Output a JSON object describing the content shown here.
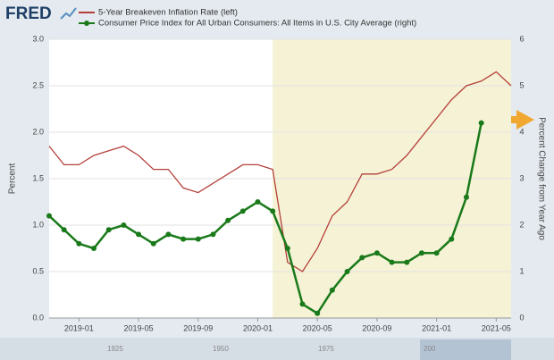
{
  "logo": "FRED",
  "chart_data": {
    "type": "line",
    "legend": [
      "5-Year Breakeven Inflation Rate (left)",
      "Consumer Price Index for All Urban Consumers: All Items in U.S. City Average (right)"
    ],
    "ylabel": "Percent",
    "y2label": "Percent Change from Year Ago",
    "x": [
      "2018-11",
      "2018-12",
      "2019-01",
      "2019-02",
      "2019-03",
      "2019-04",
      "2019-05",
      "2019-06",
      "2019-07",
      "2019-08",
      "2019-09",
      "2019-10",
      "2019-11",
      "2019-12",
      "2020-01",
      "2020-02",
      "2020-03",
      "2020-04",
      "2020-05",
      "2020-06",
      "2020-07",
      "2020-08",
      "2020-09",
      "2020-10",
      "2020-11",
      "2020-12",
      "2021-01",
      "2021-02",
      "2021-03",
      "2021-04",
      "2021-05",
      "2021-06"
    ],
    "xlim": [
      "2018-11",
      "2021-06"
    ],
    "xticks": [
      "2019-01",
      "2019-05",
      "2019-09",
      "2020-01",
      "2020-05",
      "2020-09",
      "2021-01",
      "2021-05"
    ],
    "ylim": [
      0,
      3
    ],
    "yticks": [
      {
        "value": 0,
        "label": "0.0"
      },
      0.5,
      {
        "value": 1,
        "label": "1.0"
      },
      1.5,
      {
        "value": 2,
        "label": "2.0"
      },
      2.5,
      {
        "value": 3,
        "label": "3.0"
      }
    ],
    "y2lim": [
      0,
      6
    ],
    "y2ticks": [
      0,
      1,
      2,
      3,
      4,
      5,
      6
    ],
    "shaded_range": [
      "2020-02",
      "2021-06"
    ],
    "series": [
      {
        "name": "5-Year Breakeven Inflation Rate (left)",
        "color": "#b5403a",
        "markers": false,
        "values": [
          1.85,
          1.65,
          1.65,
          1.75,
          1.8,
          1.85,
          1.75,
          1.6,
          1.6,
          1.4,
          1.35,
          1.45,
          1.55,
          1.65,
          1.65,
          1.6,
          0.6,
          0.5,
          0.75,
          1.1,
          1.25,
          1.55,
          1.55,
          1.6,
          1.75,
          1.95,
          2.15,
          2.35,
          2.5,
          2.55,
          2.65,
          2.5
        ]
      },
      {
        "name": "Consumer Price Index for All Urban Consumers: All Items in U.S. City Average (right)",
        "color": "#1a7a1a",
        "markers": true,
        "axis": "y2",
        "values": [
          2.2,
          1.9,
          1.6,
          1.5,
          1.9,
          2.0,
          1.8,
          1.6,
          1.8,
          1.7,
          1.7,
          1.8,
          2.1,
          2.3,
          2.5,
          2.3,
          1.5,
          0.3,
          0.1,
          0.6,
          1.0,
          1.3,
          1.4,
          1.2,
          1.2,
          1.4,
          1.4,
          1.7,
          2.6,
          4.2,
          null,
          null
        ]
      }
    ],
    "navigator_labels": [
      "1925",
      "1950",
      "1975",
      "200"
    ]
  }
}
